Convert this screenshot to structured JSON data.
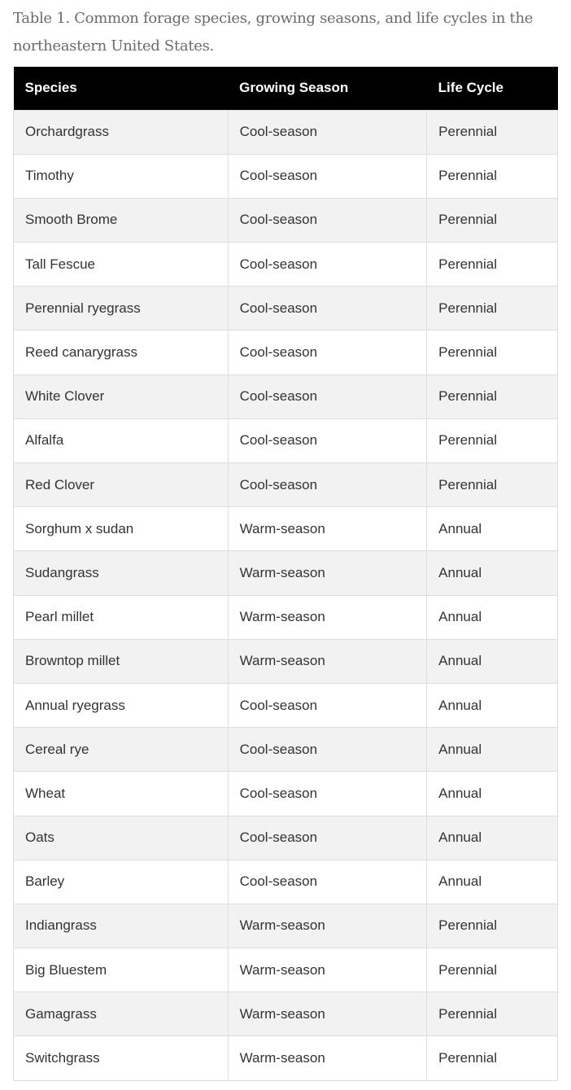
{
  "caption": "Table 1. Common forage species, growing seasons, and life cycles in the northeastern United States.",
  "table": {
    "headers": [
      "Species",
      "Growing Season",
      "Life Cycle"
    ],
    "rows": [
      [
        "Orchardgrass",
        "Cool-season",
        "Perennial"
      ],
      [
        "Timothy",
        "Cool-season",
        "Perennial"
      ],
      [
        "Smooth Brome",
        "Cool-season",
        "Perennial"
      ],
      [
        "Tall Fescue",
        "Cool-season",
        "Perennial"
      ],
      [
        "Perennial ryegrass",
        "Cool-season",
        "Perennial"
      ],
      [
        "Reed canarygrass",
        "Cool-season",
        "Perennial"
      ],
      [
        "White Clover",
        "Cool-season",
        "Perennial"
      ],
      [
        "Alfalfa",
        "Cool-season",
        "Perennial"
      ],
      [
        "Red Clover",
        "Cool-season",
        "Perennial"
      ],
      [
        "Sorghum x sudan",
        "Warm-season",
        "Annual"
      ],
      [
        "Sudangrass",
        "Warm-season",
        "Annual"
      ],
      [
        "Pearl millet",
        "Warm-season",
        "Annual"
      ],
      [
        "Browntop millet",
        "Warm-season",
        "Annual"
      ],
      [
        "Annual ryegrass",
        "Cool-season",
        "Annual"
      ],
      [
        "Cereal rye",
        "Cool-season",
        "Annual"
      ],
      [
        "Wheat",
        "Cool-season",
        "Annual"
      ],
      [
        "Oats",
        "Cool-season",
        "Annual"
      ],
      [
        "Barley",
        "Cool-season",
        "Annual"
      ],
      [
        "Indiangrass",
        "Warm-season",
        "Perennial"
      ],
      [
        "Big Bluestem",
        "Warm-season",
        "Perennial"
      ],
      [
        "Gamagrass",
        "Warm-season",
        "Perennial"
      ],
      [
        "Switchgrass",
        "Warm-season",
        "Perennial"
      ]
    ]
  },
  "colors": {
    "header_bg": "#000000",
    "header_text": "#ffffff",
    "stripe": "#f2f2f2",
    "border": "#dedede"
  }
}
